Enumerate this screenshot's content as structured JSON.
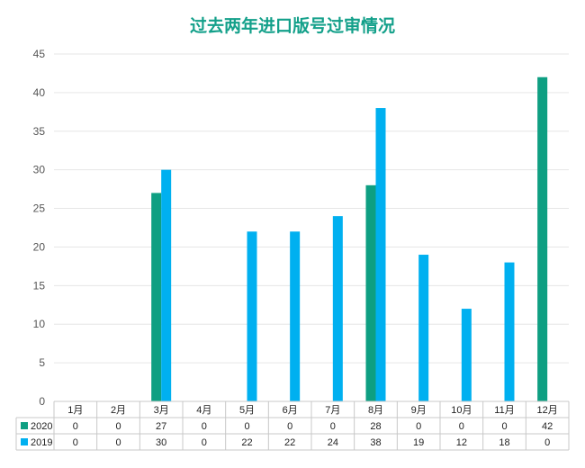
{
  "chart_data": {
    "type": "bar",
    "title": "过去两年进口版号过审情况",
    "categories": [
      "1月",
      "2月",
      "3月",
      "4月",
      "5月",
      "6月",
      "7月",
      "8月",
      "9月",
      "10月",
      "11月",
      "12月"
    ],
    "series": [
      {
        "name": "2020",
        "color": "#0e9f82",
        "values": [
          0,
          0,
          27,
          0,
          0,
          0,
          0,
          28,
          0,
          0,
          0,
          42
        ]
      },
      {
        "name": "2019",
        "color": "#00b0f0",
        "values": [
          0,
          0,
          30,
          0,
          22,
          22,
          24,
          38,
          19,
          12,
          18,
          0
        ]
      }
    ],
    "ylim": [
      0,
      45
    ],
    "yticks": [
      0,
      5,
      10,
      15,
      20,
      25,
      30,
      35,
      40,
      45
    ],
    "grid": true,
    "legend": "data-table"
  }
}
